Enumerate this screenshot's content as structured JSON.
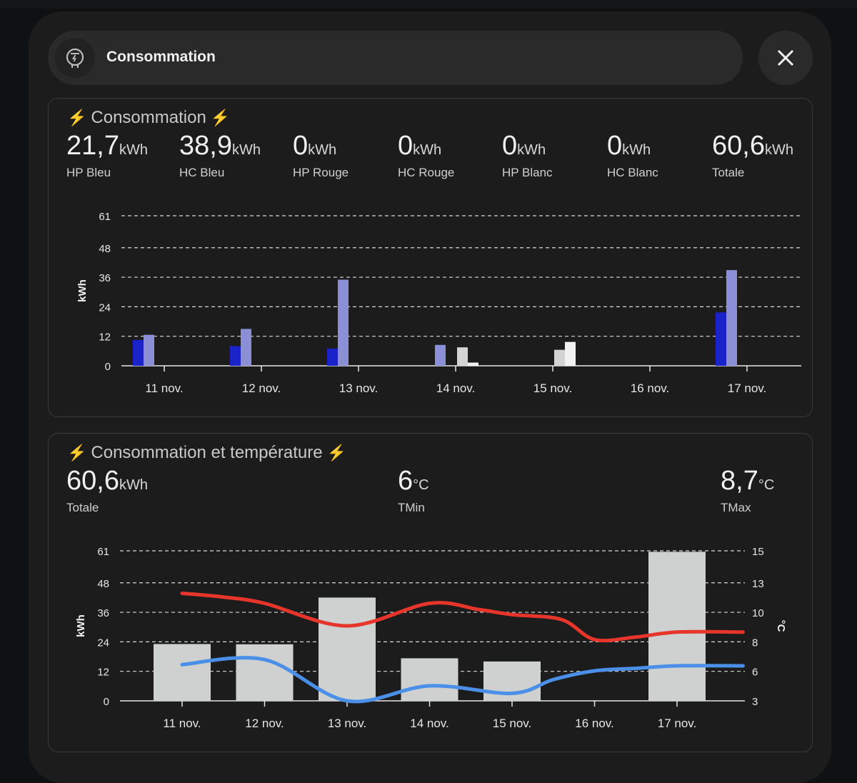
{
  "dialog": {
    "title": "Consommation"
  },
  "card1": {
    "title": "Consommation",
    "stats": [
      {
        "value": "21,7",
        "unit": "kWh",
        "label": "HP Bleu"
      },
      {
        "value": "38,9",
        "unit": "kWh",
        "label": "HC Bleu"
      },
      {
        "value": "0",
        "unit": "kWh",
        "label": "HP Rouge"
      },
      {
        "value": "0",
        "unit": "kWh",
        "label": "HC Rouge"
      },
      {
        "value": "0",
        "unit": "kWh",
        "label": "HP Blanc"
      },
      {
        "value": "0",
        "unit": "kWh",
        "label": "HC Blanc"
      },
      {
        "value": "60,6",
        "unit": "kWh",
        "label": "Totale"
      }
    ]
  },
  "card2": {
    "title": "Consommation et température",
    "stats": [
      {
        "value": "60,6",
        "unit": "kWh",
        "label": "Totale"
      },
      {
        "value": "6",
        "unit": "°C",
        "label": "TMin"
      },
      {
        "value": "8,7",
        "unit": "°C",
        "label": "TMax"
      }
    ]
  },
  "colors": {
    "hp_bleu": "#1a22c9",
    "hc_bleu": "#8a8fd6",
    "hp_blanc": "#d4d4d4",
    "hc_blanc": "#f2f2f2",
    "total_bar": "#cfd1d1",
    "tmax_line": "#e8352b",
    "tmin_line": "#4a8fe8",
    "bolt": "#f5c518"
  },
  "chart_data": [
    {
      "type": "bar",
      "categories": [
        "11 nov.",
        "12 nov.",
        "13 nov.",
        "14 nov.",
        "15 nov.",
        "16 nov.",
        "17 nov."
      ],
      "ylabel": "kWh",
      "ylim": [
        0,
        61
      ],
      "yticks": [
        0,
        12,
        24,
        36,
        48,
        61
      ],
      "grid": true,
      "series": [
        {
          "name": "HP Bleu",
          "color": "#1a22c9",
          "values": [
            10.5,
            8,
            7,
            0,
            0,
            0,
            21.7
          ]
        },
        {
          "name": "HC Bleu",
          "color": "#8a8fd6",
          "values": [
            12.6,
            15,
            35,
            8.5,
            0,
            0,
            38.9
          ]
        },
        {
          "name": "HP Blanc",
          "color": "#d4d4d4",
          "values": [
            0,
            0,
            0,
            7.5,
            6.5,
            0,
            0
          ]
        },
        {
          "name": "HC Blanc",
          "color": "#f2f2f2",
          "values": [
            0,
            0,
            0,
            1.3,
            9.7,
            0,
            0
          ]
        }
      ]
    },
    {
      "type": "bar",
      "categories": [
        "11 nov.",
        "12 nov.",
        "13 nov.",
        "14 nov.",
        "15 nov.",
        "16 nov.",
        "17 nov."
      ],
      "ylabel": "kWh",
      "y2label": "°C",
      "ylim": [
        0,
        61
      ],
      "yticks": [
        0,
        12,
        24,
        36,
        48,
        61
      ],
      "y2lim": [
        3,
        15
      ],
      "y2ticks": [
        3,
        6,
        8,
        10,
        13,
        15
      ],
      "grid": true,
      "series": [
        {
          "name": "Totale",
          "type": "bar",
          "color": "#cfd1d1",
          "values": [
            23.1,
            23,
            42,
            17.3,
            16,
            0,
            60.6
          ]
        },
        {
          "name": "TMax",
          "type": "line",
          "axis": "y2",
          "color": "#e8352b",
          "x": [
            0,
            0.5,
            1,
            2,
            3,
            3.6,
            4,
            4.6,
            5,
            5.5,
            6,
            6.8
          ],
          "values": [
            11.6,
            11.3,
            10.8,
            9.0,
            10.8,
            10.3,
            9.9,
            9.5,
            7.9,
            8.1,
            8.5,
            8.5
          ]
        },
        {
          "name": "TMin",
          "type": "line",
          "axis": "y2",
          "color": "#4a8fe8",
          "x": [
            0,
            1,
            2,
            3,
            4,
            4.5,
            5,
            5.5,
            6,
            6.8
          ],
          "values": [
            5.9,
            6.3,
            3.0,
            4.2,
            3.6,
            4.7,
            5.4,
            5.6,
            5.8,
            5.8
          ]
        }
      ]
    }
  ]
}
